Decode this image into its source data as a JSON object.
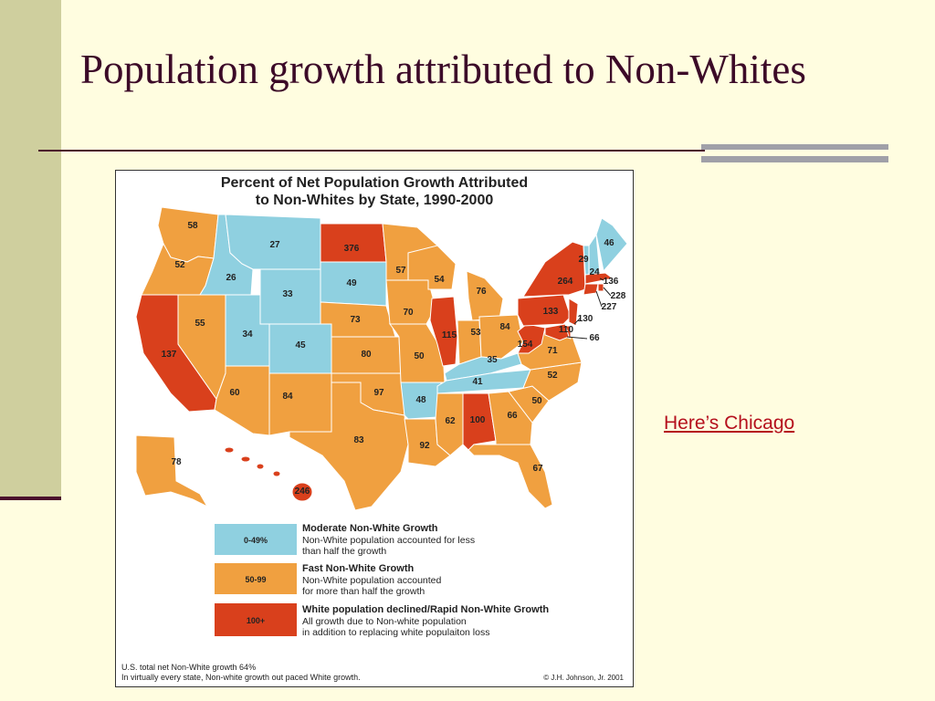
{
  "slide": {
    "title": "Population growth attributed to Non-Whites",
    "link_text": "Here’s Chicago"
  },
  "map": {
    "title_line1": "Percent of Net Population Growth Attributed",
    "title_line2": "to Non-Whites by State, 1990-2000",
    "colors": {
      "moderate": "#8fd0e0",
      "fast": "#f0a040",
      "rapid": "#d9401c",
      "border": "#ffffff"
    },
    "legend": [
      {
        "swatch_label": "0-49%",
        "heading": "Moderate Non-White Growth",
        "line1": "Non-White population accounted for less",
        "line2": "than half the growth",
        "category": "moderate"
      },
      {
        "swatch_label": "50-99",
        "heading": "Fast Non-White Growth",
        "line1": "Non-White population accounted",
        "line2": "for more than half the growth",
        "category": "fast"
      },
      {
        "swatch_label": "100+",
        "heading": "White population declined/Rapid Non-White Growth",
        "line1": "All growth due to Non-white population",
        "line2": "in addition to replacing white populaiton loss",
        "category": "rapid"
      }
    ],
    "footnote_line1": "U.S. total net Non-White growth 64%",
    "footnote_line2": "In virtually every state, Non-white growth out paced White growth.",
    "credit": "© J.H. Johnson, Jr. 2001",
    "state_values": {
      "WA": "58",
      "OR": "52",
      "CA": "137",
      "ID": "26",
      "NV": "55",
      "MT": "27",
      "WY": "33",
      "UT": "34",
      "AZ": "60",
      "CO": "45",
      "NM": "84",
      "ND": "376",
      "SD": "49",
      "NE": "73",
      "KS": "80",
      "OK": "97",
      "TX": "83",
      "MN": "57",
      "IA": "70",
      "MO": "50",
      "AR": "48",
      "LA": "92",
      "WI": "54",
      "IL": "115",
      "MI": "76",
      "IN": "53",
      "OH": "84",
      "KY": "35",
      "TN": "41",
      "MS": "62",
      "AL": "100",
      "GA": "66",
      "FL": "67",
      "SC": "50",
      "NC": "52",
      "VA": "71",
      "WV": "154",
      "PA": "133",
      "NY": "264",
      "ME": "46",
      "NH": "29",
      "VT": "24",
      "MA": "136",
      "RI": "228",
      "CT": "227",
      "NJ": "130",
      "DE": "110",
      "MD": "66",
      "AK": "78",
      "HI": "246"
    }
  }
}
